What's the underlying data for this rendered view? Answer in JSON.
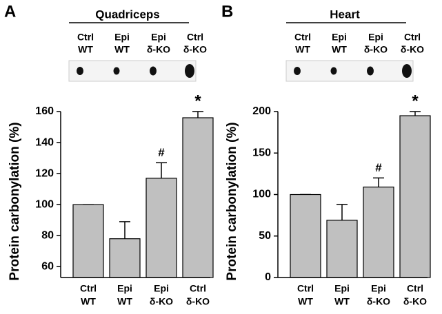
{
  "chart_data": [
    {
      "type": "bar",
      "panel": "A",
      "title": "Quadriceps",
      "y_label": "Protein carbonylation (%)",
      "categories": [
        [
          "Ctrl",
          "WT"
        ],
        [
          "Epi",
          "WT"
        ],
        [
          "Epi",
          "δ-KO"
        ],
        [
          "Ctrl",
          "δ-KO"
        ]
      ],
      "values": [
        100,
        78,
        117,
        156
      ],
      "errors": [
        0,
        11,
        10,
        4
      ],
      "annotations": [
        null,
        null,
        "#",
        "*"
      ],
      "color": "#c0c0c0",
      "ylim": [
        53,
        160
      ],
      "yticks": [
        60,
        80,
        100,
        120,
        140,
        160
      ]
    },
    {
      "type": "bar",
      "panel": "B",
      "title": "Heart",
      "y_label": "Protein carbonylation (%)",
      "categories": [
        [
          "Ctrl",
          "WT"
        ],
        [
          "Epi",
          "WT"
        ],
        [
          "Epi",
          "δ-KO"
        ],
        [
          "Ctrl",
          "δ-KO"
        ]
      ],
      "values": [
        100,
        69,
        109,
        195
      ],
      "errors": [
        0,
        19,
        11,
        5
      ],
      "annotations": [
        null,
        null,
        "#",
        "*"
      ],
      "color": "#c0c0c0",
      "ylim": [
        0,
        200
      ],
      "yticks": [
        0,
        50,
        100,
        150,
        200
      ]
    }
  ]
}
